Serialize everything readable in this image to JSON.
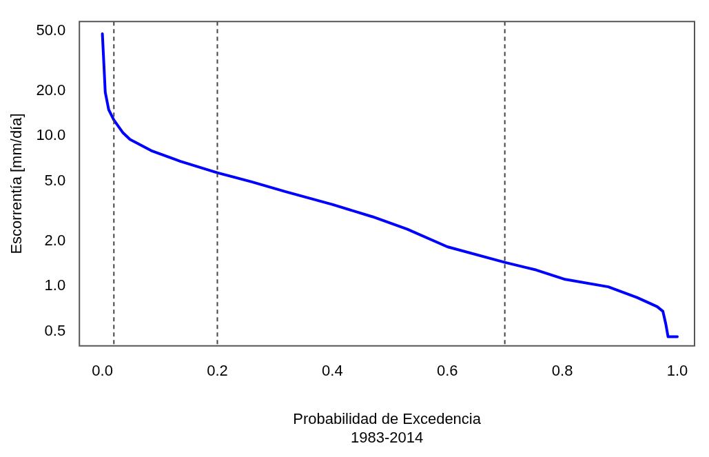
{
  "chart_data": {
    "type": "line",
    "xlabel": "Probabilidad de Excedencia",
    "ylabel": "Escorrentía [mm/día]",
    "annotations": [
      "1983-2014"
    ],
    "x": [
      0,
      0.005,
      0.011,
      0.02,
      0.036,
      0.048,
      0.085,
      0.135,
      0.2,
      0.26,
      0.32,
      0.4,
      0.47,
      0.53,
      0.6,
      0.7,
      0.755,
      0.805,
      0.88,
      0.93,
      0.965,
      0.975,
      0.98,
      0.984,
      1.0
    ],
    "series": [
      {
        "color": "#0000ff",
        "values": [
          48,
          19.6,
          15,
          12.8,
          10.5,
          9.5,
          8,
          6.8,
          5.7,
          4.95,
          4.25,
          3.5,
          2.9,
          2.4,
          1.83,
          1.44,
          1.28,
          1.11,
          0.99,
          0.84,
          0.73,
          0.68,
          0.56,
          0.46,
          0.46
        ]
      }
    ],
    "log": "y",
    "xlim": [
      -0.04,
      1.03
    ],
    "ylim": [
      0.4,
      58
    ],
    "xticks": [
      {
        "value": 0,
        "label": "0.0"
      },
      0.2,
      0.4,
      0.6,
      0.8,
      {
        "value": 1,
        "label": "1.0"
      }
    ],
    "yticks": [
      {
        "value": 0.5,
        "label": "0.5"
      },
      {
        "value": 1,
        "label": "1.0"
      },
      {
        "value": 2,
        "label": "2.0"
      },
      {
        "value": 5,
        "label": "5.0"
      },
      {
        "value": 10,
        "label": "10.0"
      },
      {
        "value": 20,
        "label": "20.0"
      },
      {
        "value": 50,
        "label": "50.0"
      }
    ],
    "ref_lines": [
      {
        "axis": "x",
        "value": 0.02,
        "color": "#444444",
        "line_style": "dashed"
      },
      {
        "axis": "x",
        "value": 0.2,
        "color": "#444444",
        "line_style": "dashed"
      },
      {
        "axis": "x",
        "value": 0.7,
        "color": "#444444",
        "line_style": "dashed"
      }
    ],
    "grid": false,
    "legend": false,
    "marker": "none",
    "line_style": "solid"
  }
}
